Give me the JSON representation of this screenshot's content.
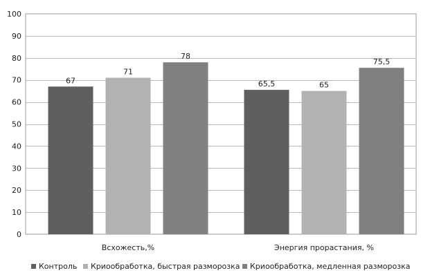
{
  "chart_data": {
    "type": "bar",
    "categories": [
      "Всхожесть,%",
      "Энергия прорастания, %"
    ],
    "series": [
      {
        "name": "Контроль",
        "values": [
          67,
          65.5
        ],
        "labels": [
          "67",
          "65,5"
        ],
        "color": "#5f5f5f"
      },
      {
        "name": "Криообработка, быстрая разморозка",
        "values": [
          71,
          65
        ],
        "labels": [
          "71",
          "65"
        ],
        "color": "#b2b2b2"
      },
      {
        "name": "Криообработка, медленная разморозка",
        "values": [
          78,
          75.5
        ],
        "labels": [
          "78",
          "75,5"
        ],
        "color": "#808080"
      }
    ],
    "ylim": [
      0,
      100
    ],
    "yticks": [
      "0",
      "10",
      "20",
      "30",
      "40",
      "50",
      "60",
      "70",
      "80",
      "90",
      "100"
    ],
    "grid": true,
    "legend_position": "bottom",
    "title": "",
    "xlabel": "",
    "ylabel": ""
  }
}
